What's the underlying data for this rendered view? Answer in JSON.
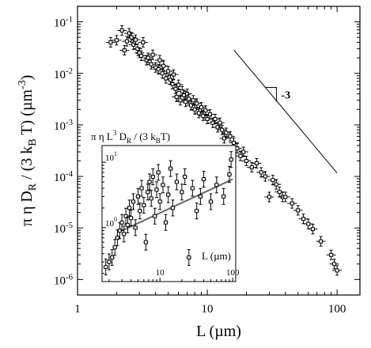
{
  "chart_data": [
    {
      "type": "scatter",
      "xlabel": "L (µm)",
      "ylabel": "π η D_R / (3 k_B T) (µm⁻³)",
      "xscale": "log",
      "yscale": "log",
      "xlim": [
        1,
        150
      ],
      "ylim": [
        5e-07,
        0.2
      ],
      "grid": false,
      "x_ticks": [
        {
          "value": 1,
          "label": "1"
        },
        {
          "value": 10,
          "label": "10"
        },
        {
          "value": 100,
          "label": "100"
        }
      ],
      "y_ticks": [
        {
          "value": 1e-06,
          "base": "10",
          "exp": "-6"
        },
        {
          "value": 1e-05,
          "base": "10",
          "exp": "-5"
        },
        {
          "value": 0.0001,
          "base": "10",
          "exp": "-4"
        },
        {
          "value": 0.001,
          "base": "10",
          "exp": "-3"
        },
        {
          "value": 0.01,
          "base": "10",
          "exp": "-2"
        },
        {
          "value": 0.1,
          "base": "10",
          "exp": "-1"
        }
      ],
      "reference_line": {
        "label": "-3",
        "slope": -3,
        "x": [
          16,
          100
        ],
        "y": [
          0.0286,
          0.000117
        ]
      },
      "series": [
        {
          "marker": "square-with-error-bars",
          "points": [
            {
              "x": 1.8,
              "y": 0.04
            },
            {
              "x": 2.0,
              "y": 0.044
            },
            {
              "x": 2.2,
              "y": 0.068
            },
            {
              "x": 2.3,
              "y": 0.028
            },
            {
              "x": 2.4,
              "y": 0.042
            },
            {
              "x": 2.5,
              "y": 0.06
            },
            {
              "x": 2.6,
              "y": 0.05
            },
            {
              "x": 2.7,
              "y": 0.036
            },
            {
              "x": 2.8,
              "y": 0.045
            },
            {
              "x": 2.9,
              "y": 0.03
            },
            {
              "x": 3.0,
              "y": 0.025
            },
            {
              "x": 3.1,
              "y": 0.022
            },
            {
              "x": 3.2,
              "y": 0.04
            },
            {
              "x": 3.4,
              "y": 0.018
            },
            {
              "x": 3.5,
              "y": 0.02
            },
            {
              "x": 3.7,
              "y": 0.015
            },
            {
              "x": 3.8,
              "y": 0.023
            },
            {
              "x": 4.0,
              "y": 0.013
            },
            {
              "x": 4.2,
              "y": 0.012
            },
            {
              "x": 4.3,
              "y": 0.018
            },
            {
              "x": 4.5,
              "y": 0.01
            },
            {
              "x": 4.6,
              "y": 0.014
            },
            {
              "x": 4.8,
              "y": 0.008
            },
            {
              "x": 5.0,
              "y": 0.011
            },
            {
              "x": 5.2,
              "y": 0.0075
            },
            {
              "x": 5.4,
              "y": 0.0062
            },
            {
              "x": 5.5,
              "y": 0.0095
            },
            {
              "x": 5.7,
              "y": 0.005
            },
            {
              "x": 5.8,
              "y": 0.0035
            },
            {
              "x": 6.0,
              "y": 0.006
            },
            {
              "x": 6.2,
              "y": 0.003
            },
            {
              "x": 6.4,
              "y": 0.0045
            },
            {
              "x": 6.6,
              "y": 0.0038
            },
            {
              "x": 6.8,
              "y": 0.0028
            },
            {
              "x": 7.0,
              "y": 0.004
            },
            {
              "x": 7.2,
              "y": 0.0032
            },
            {
              "x": 7.5,
              "y": 0.0024
            },
            {
              "x": 7.8,
              "y": 0.003
            },
            {
              "x": 8.0,
              "y": 0.002
            },
            {
              "x": 8.3,
              "y": 0.0026
            },
            {
              "x": 8.6,
              "y": 0.0017
            },
            {
              "x": 9.0,
              "y": 0.0022
            },
            {
              "x": 9.3,
              "y": 0.0015
            },
            {
              "x": 9.7,
              "y": 0.0019
            },
            {
              "x": 10.0,
              "y": 0.0013
            },
            {
              "x": 10.5,
              "y": 0.0016
            },
            {
              "x": 11.0,
              "y": 0.0011
            },
            {
              "x": 11.5,
              "y": 0.0013
            },
            {
              "x": 12.0,
              "y": 0.0009
            },
            {
              "x": 12.5,
              "y": 0.0011
            },
            {
              "x": 13.0,
              "y": 0.0008
            },
            {
              "x": 13.5,
              "y": 0.00055
            },
            {
              "x": 14.0,
              "y": 0.0007
            },
            {
              "x": 15.0,
              "y": 0.0006
            },
            {
              "x": 16.0,
              "y": 0.00045
            },
            {
              "x": 17.0,
              "y": 0.00035
            },
            {
              "x": 18.0,
              "y": 0.00025
            },
            {
              "x": 19.0,
              "y": 0.0003
            },
            {
              "x": 20.0,
              "y": 0.0002
            },
            {
              "x": 22.0,
              "y": 0.00015
            },
            {
              "x": 24.0,
              "y": 0.00018
            },
            {
              "x": 26.0,
              "y": 0.00012
            },
            {
              "x": 28.0,
              "y": 0.0001
            },
            {
              "x": 30.0,
              "y": 4e-05
            },
            {
              "x": 32.0,
              "y": 8.5e-05
            },
            {
              "x": 34.0,
              "y": 7e-05
            },
            {
              "x": 36.0,
              "y": 5e-05
            },
            {
              "x": 38.0,
              "y": 4e-05
            },
            {
              "x": 40.0,
              "y": 4e-05
            },
            {
              "x": 45.0,
              "y": 3e-05
            },
            {
              "x": 50.0,
              "y": 2.2e-05
            },
            {
              "x": 55.0,
              "y": 1.5e-05
            },
            {
              "x": 60.0,
              "y": 1.2e-05
            },
            {
              "x": 65.0,
              "y": 9.5e-06
            },
            {
              "x": 75.0,
              "y": 5.5e-06
            },
            {
              "x": 90.0,
              "y": 3e-06
            },
            {
              "x": 95.0,
              "y": 2e-06
            },
            {
              "x": 100.0,
              "y": 1.5e-06
            }
          ]
        }
      ]
    },
    {
      "type": "scatter",
      "ylabel": "π η L³ D_R / (3 k_B T)",
      "xlabel": "L (µm)",
      "xscale": "log",
      "yscale": "log",
      "xlim": [
        1.6,
        110
      ],
      "ylim": [
        0.15,
        18
      ],
      "x_ticks": [
        {
          "value": 10,
          "label": "10"
        },
        {
          "value": 100,
          "label": "100"
        }
      ],
      "y_ticks": [
        {
          "value": 1,
          "base": "10",
          "exp": "0"
        },
        {
          "value": 10,
          "base": "10",
          "exp": "1"
        }
      ],
      "fit_line": {
        "x": [
          3.0,
          100.0
        ],
        "y": [
          0.9,
          5.5
        ]
      },
      "series": [
        {
          "marker": "square-with-error-bars",
          "points": [
            {
              "x": 1.8,
              "y": 0.25
            },
            {
              "x": 2.0,
              "y": 0.3
            },
            {
              "x": 2.2,
              "y": 0.35
            },
            {
              "x": 2.4,
              "y": 0.5
            },
            {
              "x": 2.6,
              "y": 0.7
            },
            {
              "x": 2.8,
              "y": 0.9
            },
            {
              "x": 3.0,
              "y": 1.2
            },
            {
              "x": 3.2,
              "y": 0.8
            },
            {
              "x": 3.4,
              "y": 1.5
            },
            {
              "x": 3.6,
              "y": 1.1
            },
            {
              "x": 3.8,
              "y": 2.0
            },
            {
              "x": 4.0,
              "y": 1.4
            },
            {
              "x": 4.3,
              "y": 2.5
            },
            {
              "x": 4.6,
              "y": 1.0
            },
            {
              "x": 5.0,
              "y": 3.0
            },
            {
              "x": 5.3,
              "y": 1.8
            },
            {
              "x": 5.6,
              "y": 4.0
            },
            {
              "x": 6.0,
              "y": 2.2
            },
            {
              "x": 6.4,
              "y": 0.6
            },
            {
              "x": 6.8,
              "y": 3.5
            },
            {
              "x": 7.2,
              "y": 5.0
            },
            {
              "x": 7.6,
              "y": 2.8
            },
            {
              "x": 8.0,
              "y": 6.0
            },
            {
              "x": 8.5,
              "y": 1.5
            },
            {
              "x": 9.0,
              "y": 3.8
            },
            {
              "x": 9.5,
              "y": 7.0
            },
            {
              "x": 10.0,
              "y": 2.5
            },
            {
              "x": 11.0,
              "y": 4.5
            },
            {
              "x": 12.0,
              "y": 1.2
            },
            {
              "x": 13.0,
              "y": 3.2
            },
            {
              "x": 14.0,
              "y": 8.0
            },
            {
              "x": 15.0,
              "y": 2.0
            },
            {
              "x": 17.0,
              "y": 5.0
            },
            {
              "x": 20.0,
              "y": 3.5
            },
            {
              "x": 22.0,
              "y": 6.0
            },
            {
              "x": 25.0,
              "y": 0.35
            },
            {
              "x": 28.0,
              "y": 4.0
            },
            {
              "x": 32.0,
              "y": 1.8
            },
            {
              "x": 36.0,
              "y": 3.0
            },
            {
              "x": 40.0,
              "y": 5.5
            },
            {
              "x": 50.0,
              "y": 2.5
            },
            {
              "x": 60.0,
              "y": 4.5
            },
            {
              "x": 75.0,
              "y": 3.0
            },
            {
              "x": 90.0,
              "y": 6.5
            },
            {
              "x": 95.0,
              "y": 11.0
            }
          ]
        }
      ]
    }
  ]
}
